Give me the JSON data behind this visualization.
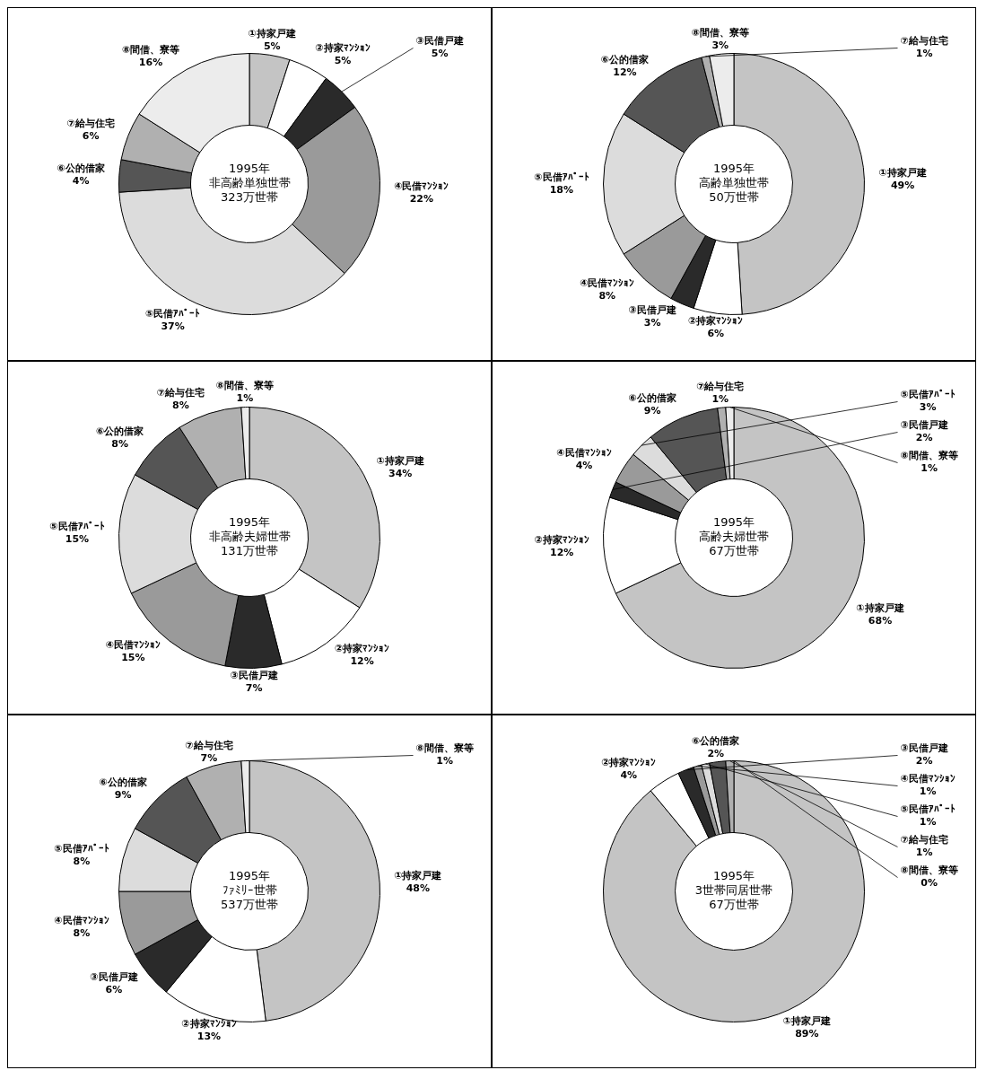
{
  "chart_data": [
    {
      "type": "donut",
      "title": "1995年",
      "subtitle": "非高齢単独世帯",
      "annotations": [
        "323万世帯"
      ],
      "categories": [
        "①持家戸建",
        "②持家ﾏﾝｼｮﾝ",
        "③民借戸建",
        "④民借ﾏﾝｼｮﾝ",
        "⑤民借ｱﾊﾟｰﾄ",
        "⑥公的借家",
        "⑦給与住宅",
        "⑧間借、寮等"
      ],
      "values": [
        5,
        5,
        5,
        22,
        37,
        4,
        6,
        16
      ],
      "value_labels": [
        "5%",
        "5%",
        "5%",
        "22%",
        "37%",
        "4%",
        "6%",
        "16%"
      ],
      "colors": [
        "#c4c4c4",
        "#ffffff",
        "#2a2a2a",
        "#9a9a9a",
        "#dcdcdc",
        "#555555",
        "#b0b0b0",
        "#ececec"
      ],
      "legend": false
    },
    {
      "type": "donut",
      "title": "1995年",
      "subtitle": "高齢単独世帯",
      "annotations": [
        "50万世帯"
      ],
      "categories": [
        "①持家戸建",
        "②持家ﾏﾝｼｮﾝ",
        "③民借戸建",
        "④民借ﾏﾝｼｮﾝ",
        "⑤民借ｱﾊﾟｰﾄ",
        "⑥公的借家",
        "⑦給与住宅",
        "⑧間借、寮等"
      ],
      "values": [
        49,
        6,
        3,
        8,
        18,
        12,
        1,
        3
      ],
      "value_labels": [
        "49%",
        "6%",
        "3%",
        "8%",
        "18%",
        "12%",
        "1%",
        "3%"
      ],
      "colors": [
        "#c4c4c4",
        "#ffffff",
        "#2a2a2a",
        "#9a9a9a",
        "#dcdcdc",
        "#555555",
        "#b0b0b0",
        "#ececec"
      ],
      "legend": false
    },
    {
      "type": "donut",
      "title": "1995年",
      "subtitle": "非高齢夫婦世帯",
      "annotations": [
        "131万世帯"
      ],
      "categories": [
        "①持家戸建",
        "②持家ﾏﾝｼｮﾝ",
        "③民借戸建",
        "④民借ﾏﾝｼｮﾝ",
        "⑤民借ｱﾊﾟｰﾄ",
        "⑥公的借家",
        "⑦給与住宅",
        "⑧間借、寮等"
      ],
      "values": [
        34,
        12,
        7,
        15,
        15,
        8,
        8,
        1
      ],
      "value_labels": [
        "34%",
        "12%",
        "7%",
        "15%",
        "15%",
        "8%",
        "8%",
        "1%"
      ],
      "colors": [
        "#c4c4c4",
        "#ffffff",
        "#2a2a2a",
        "#9a9a9a",
        "#dcdcdc",
        "#555555",
        "#b0b0b0",
        "#ececec"
      ],
      "legend": false
    },
    {
      "type": "donut",
      "title": "1995年",
      "subtitle": "高齢夫婦世帯",
      "annotations": [
        "67万世帯"
      ],
      "categories": [
        "①持家戸建",
        "②持家ﾏﾝｼｮﾝ",
        "③民借戸建",
        "④民借ﾏﾝｼｮﾝ",
        "⑤民借ｱﾊﾟｰﾄ",
        "⑥公的借家",
        "⑦給与住宅",
        "⑧間借、寮等"
      ],
      "values": [
        68,
        12,
        2,
        4,
        3,
        9,
        1,
        1
      ],
      "value_labels": [
        "68%",
        "12%",
        "2%",
        "4%",
        "3%",
        "9%",
        "1%",
        "1%"
      ],
      "colors": [
        "#c4c4c4",
        "#ffffff",
        "#2a2a2a",
        "#9a9a9a",
        "#dcdcdc",
        "#555555",
        "#b0b0b0",
        "#ececec"
      ],
      "legend": false
    },
    {
      "type": "donut",
      "title": "1995年",
      "subtitle": "ﾌｧﾐﾘｰ世帯",
      "annotations": [
        "537万世帯"
      ],
      "categories": [
        "①持家戸建",
        "②持家ﾏﾝｼｮﾝ",
        "③民借戸建",
        "④民借ﾏﾝｼｮﾝ",
        "⑤民借ｱﾊﾟｰﾄ",
        "⑥公的借家",
        "⑦給与住宅",
        "⑧間借、寮等"
      ],
      "values": [
        48,
        13,
        6,
        8,
        8,
        9,
        7,
        1
      ],
      "value_labels": [
        "48%",
        "13%",
        "6%",
        "8%",
        "8%",
        "9%",
        "7%",
        "1%"
      ],
      "colors": [
        "#c4c4c4",
        "#ffffff",
        "#2a2a2a",
        "#9a9a9a",
        "#dcdcdc",
        "#555555",
        "#b0b0b0",
        "#ececec"
      ],
      "legend": false
    },
    {
      "type": "donut",
      "title": "1995年",
      "subtitle": "3世帯同居世帯",
      "annotations": [
        "67万世帯"
      ],
      "categories": [
        "①持家戸建",
        "②持家ﾏﾝｼｮﾝ",
        "③民借戸建",
        "④民借ﾏﾝｼｮﾝ",
        "⑤民借ｱﾊﾟｰﾄ",
        "⑥公的借家",
        "⑦給与住宅",
        "⑧間借、寮等"
      ],
      "values": [
        89,
        4,
        2,
        1,
        1,
        2,
        1,
        0
      ],
      "value_labels": [
        "89%",
        "4%",
        "2%",
        "1%",
        "1%",
        "2%",
        "1%",
        "0%"
      ],
      "colors": [
        "#c4c4c4",
        "#ffffff",
        "#2a2a2a",
        "#9a9a9a",
        "#dcdcdc",
        "#555555",
        "#b0b0b0",
        "#ececec"
      ],
      "legend": false
    }
  ]
}
